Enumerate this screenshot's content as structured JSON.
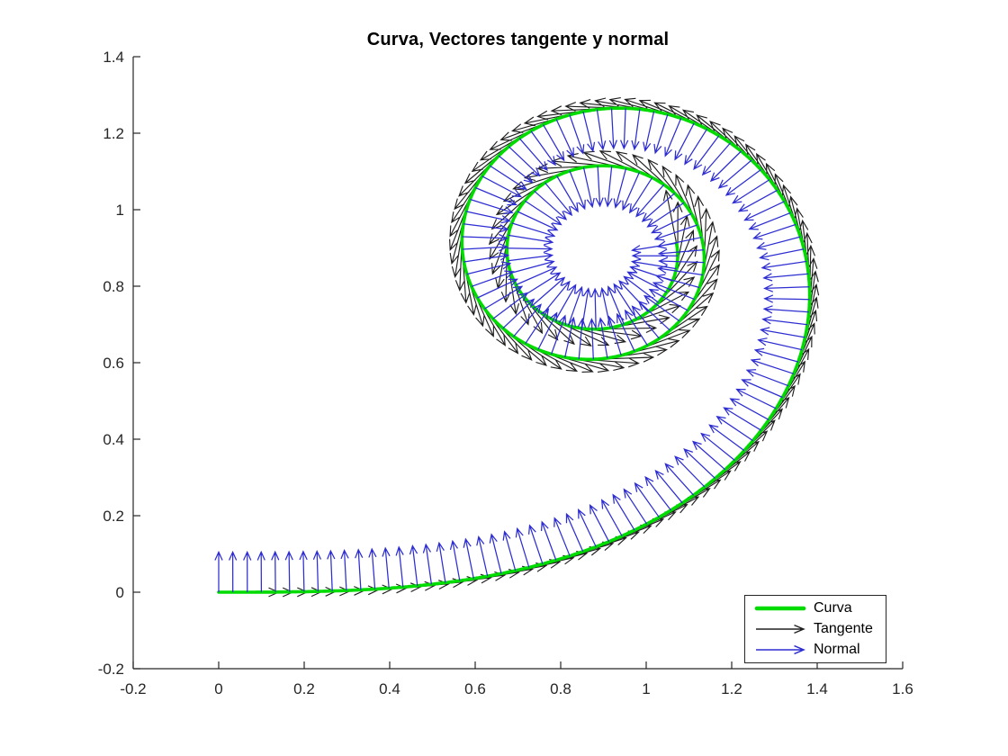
{
  "chart_data": {
    "type": "line",
    "title": "Curva, Vectores tangente y normal",
    "grid": false,
    "background": "#ffffff",
    "axes": {
      "xlim": [
        -0.2,
        1.6
      ],
      "ylim": [
        -0.2,
        1.4
      ],
      "color": "#262626",
      "tick_label_color": "#262626",
      "tick_direction": "in",
      "xticks": [
        {
          "value": -0.2,
          "label": "-0.2"
        },
        {
          "value": 0,
          "label": "0"
        },
        {
          "value": 0.2,
          "label": "0.2"
        },
        {
          "value": 0.4,
          "label": "0.4"
        },
        {
          "value": 0.6,
          "label": "0.6"
        },
        {
          "value": 0.8,
          "label": "0.8"
        },
        {
          "value": 1,
          "label": "1"
        },
        {
          "value": 1.2,
          "label": "1.2"
        },
        {
          "value": 1.4,
          "label": "1.4"
        },
        {
          "value": 1.6,
          "label": "1.6"
        }
      ],
      "yticks": [
        {
          "value": -0.2,
          "label": "-0.2"
        },
        {
          "value": 0,
          "label": "0"
        },
        {
          "value": 0.2,
          "label": "0.2"
        },
        {
          "value": 0.4,
          "label": "0.4"
        },
        {
          "value": 0.6,
          "label": "0.6"
        },
        {
          "value": 0.8,
          "label": "0.8"
        },
        {
          "value": 1,
          "label": "1"
        },
        {
          "value": 1.2,
          "label": "1.2"
        },
        {
          "value": 1.4,
          "label": "1.4"
        }
      ]
    },
    "series": [
      {
        "name": "Curva",
        "kind": "parametric-curve",
        "color": "#00dc00",
        "linewidth": 3.6,
        "parametric": "Euler spiral (clothoid): x(t)=∫0..t cos(s²/2) ds, y(t)=∫0..t sin(s²/2) ds",
        "t_range": [
          0,
          5.35
        ],
        "start_point": [
          0,
          0
        ],
        "end_point": [
          1.07,
          0.92
        ],
        "spiral_center": [
          0.886,
          0.886
        ],
        "max_x": 1.38,
        "max_y": 1.27
      },
      {
        "name": "Tangente",
        "kind": "quiver",
        "color": "#202020",
        "linewidth": 1.15,
        "count": 162,
        "scale": 0.14,
        "description": "unit tangent vectors T(t)=(cos(t²/2), sin(t²/2)) at equally spaced arc-length points along the curve"
      },
      {
        "name": "Normal",
        "kind": "quiver",
        "color": "#2d2dd2",
        "linewidth": 1.25,
        "count": 162,
        "scale": 0.105,
        "description": "unit normal vectors N(t)=(-sin(t²/2), cos(t²/2)) pointing inward toward the spiral center"
      }
    ],
    "legend": {
      "position": "southeast",
      "border_color": "#262626",
      "background": "#ffffff",
      "entries": [
        {
          "label": "Curva",
          "color": "#00dc00",
          "style": "line"
        },
        {
          "label": "Tangente",
          "color": "#202020",
          "style": "arrow"
        },
        {
          "label": "Normal",
          "color": "#2d2dd2",
          "style": "arrow"
        }
      ]
    }
  }
}
